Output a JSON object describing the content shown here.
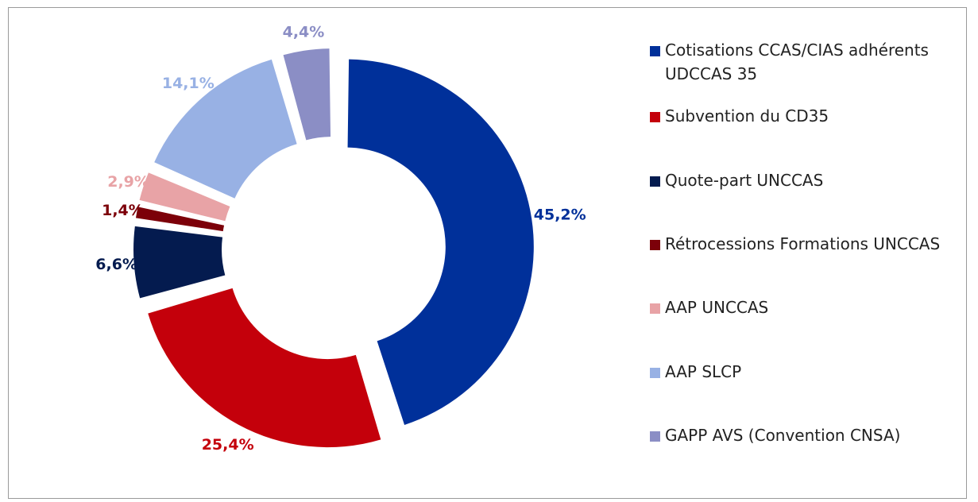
{
  "chart_data": {
    "type": "pie",
    "donut": true,
    "exploded": true,
    "legend_position": "right",
    "slices": [
      {
        "label": "Cotisations CCAS/CIAS adhérents UDCCAS 35",
        "value": 45.2,
        "value_label": "45,2%",
        "color": "#00309a"
      },
      {
        "label": "Subvention du CD35",
        "value": 25.4,
        "value_label": "25,4%",
        "color": "#c4000b"
      },
      {
        "label": "Quote-part UNCCAS",
        "value": 6.6,
        "value_label": "6,6%",
        "color": "#041b4f"
      },
      {
        "label": "Rétrocessions Formations UNCCAS",
        "value": 1.4,
        "value_label": "1,4%",
        "color": "#7c0009"
      },
      {
        "label": "AAP UNCCAS",
        "value": 2.9,
        "value_label": "2,9%",
        "color": "#e8a3a6"
      },
      {
        "label": "AAP SLCP",
        "value": 14.1,
        "value_label": "14,1%",
        "color": "#98b1e4"
      },
      {
        "label": "GAPP AVS (Convention CNSA)",
        "value": 4.4,
        "value_label": "4,4%",
        "color": "#8b8ec5"
      }
    ]
  }
}
